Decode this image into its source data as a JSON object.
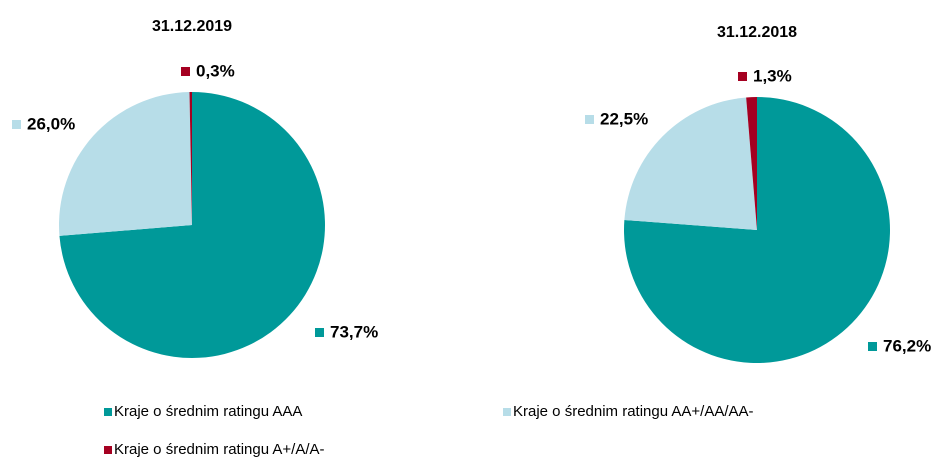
{
  "legend": {
    "labels": [
      "Kraje o średnim ratingu AAA",
      "Kraje o średnim ratingu AA+/AA/AA-",
      "Kraje o średnim ratingu A+/A/A-"
    ],
    "colors": [
      "#009999",
      "#b7dde8",
      "#a50021"
    ]
  },
  "chart_data": [
    {
      "type": "pie",
      "title": "31.12.2019",
      "values": [
        73.7,
        26.0,
        0.3
      ],
      "value_labels": [
        "73,7%",
        "26,0%",
        "0,3%"
      ]
    },
    {
      "type": "pie",
      "title": "31.12.2018",
      "values": [
        76.2,
        22.5,
        1.3
      ],
      "value_labels": [
        "76,2%",
        "22,5%",
        "1,3%"
      ]
    }
  ]
}
